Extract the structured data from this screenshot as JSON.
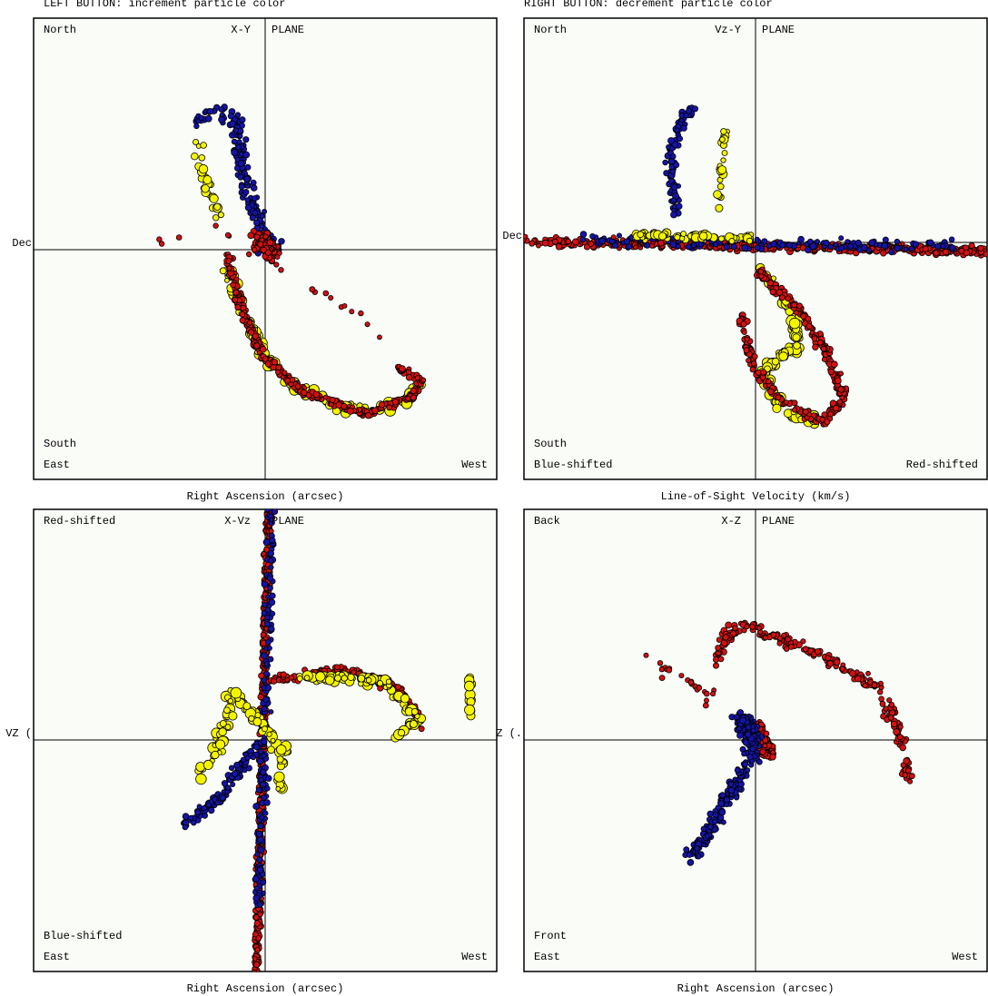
{
  "header": {
    "left_hint": "LEFT BUTTON: increment particle color",
    "right_hint": "RIGHT BUTTON: decrement particle color"
  },
  "panels": [
    {
      "plane": "X-Y",
      "plane_word": "PLANE",
      "top_left": "North",
      "bottom_left_1": "South",
      "bottom_left_2": "East",
      "bottom_right": "West",
      "side_label": "Dec",
      "axis_label": "Right Ascension (arcsec)"
    },
    {
      "plane": "Vz-Y",
      "plane_word": "PLANE",
      "top_left": "North",
      "bottom_left_1": "South",
      "bottom_left_2": "Blue-shifted",
      "bottom_right": "Red-shifted",
      "side_label": "Dec",
      "axis_label": "Line-of-Sight Velocity (km/s)"
    },
    {
      "plane": "X-Vz",
      "plane_word": "PLANE",
      "top_left": "Red-shifted",
      "bottom_left_1": "Blue-shifted",
      "bottom_left_2": "East",
      "bottom_right": "West",
      "side_label": "VZ (",
      "axis_label": "Right Ascension (arcsec)"
    },
    {
      "plane": "X-Z",
      "plane_word": "PLANE",
      "top_left": "Back",
      "bottom_left_1": "Front",
      "bottom_left_2": "East",
      "bottom_right": "West",
      "side_label": "Z (.",
      "axis_label": "Right Ascension (arcsec)"
    }
  ]
}
